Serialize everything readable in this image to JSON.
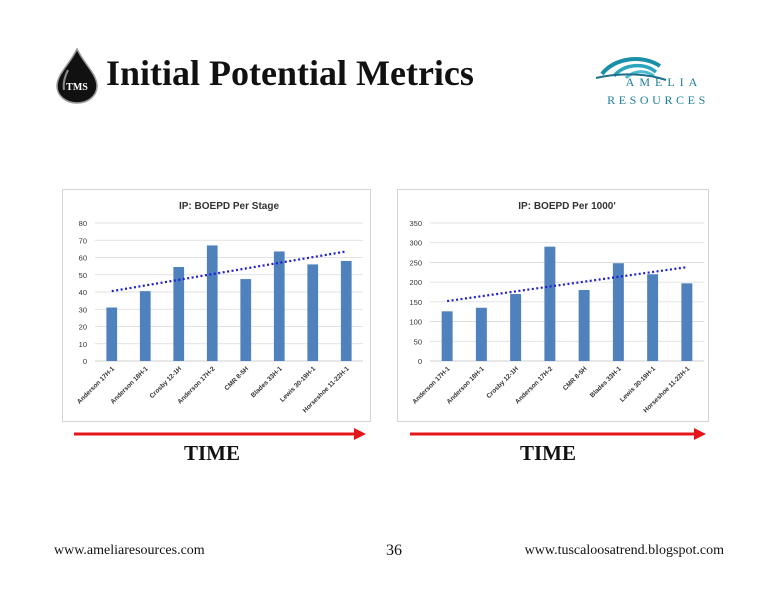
{
  "slide": {
    "title": "Initial Potential Metrics",
    "tms_logo_text": "TMS",
    "amelia_logo": {
      "line1": "AMELIA",
      "line2": "RESOURCES"
    },
    "time_label_left": "TIME",
    "time_label_right": "TIME",
    "footer_left": "www.ameliaresources.com",
    "page_number": "36",
    "footer_right": "www.tuscaloosatrend.blogspot.com",
    "colors": {
      "bar": "#4f81bd",
      "trend": "#1f1fd0",
      "arrow": "#e3161b",
      "grid": "#d9d9d9"
    }
  },
  "chart_data": [
    {
      "type": "bar",
      "title": "IP: BOEPD Per Stage",
      "categories": [
        "Anderson 17H-1",
        "Anderson 18H-1",
        "Crosby 12-1H",
        "Anderson 17H-2",
        "CMR 8-5H",
        "Blades 33H-1",
        "Lewis 30-19H-1",
        "Horseshoe 11-22H-1"
      ],
      "values": [
        31,
        40.5,
        54.5,
        67,
        47.5,
        63.5,
        56,
        58
      ],
      "ylim": [
        0,
        80
      ],
      "yticks": [
        "0",
        "10",
        "20",
        "30",
        "40",
        "50",
        "60",
        "70",
        "80"
      ],
      "trendline": {
        "start": 40.5,
        "end": 63.5,
        "style": "dotted"
      },
      "grid": true,
      "legend": "none"
    },
    {
      "type": "bar",
      "title": "IP: BOEPD Per 1000'",
      "categories": [
        "Anderson 17H-1",
        "Anderson 18H-1",
        "Crosby 12-1H",
        "Anderson 17H-2",
        "CMR 8-5H",
        "Blades 33H-1",
        "Lewis 30-19H-1",
        "Horseshoe 11-22H-1"
      ],
      "values": [
        126,
        135,
        170,
        290,
        180,
        248,
        220,
        197
      ],
      "ylim": [
        0,
        350
      ],
      "yticks": [
        "0",
        "50",
        "100",
        "150",
        "200",
        "250",
        "300",
        "350"
      ],
      "trendline": {
        "start": 152,
        "end": 238,
        "style": "dotted"
      },
      "grid": true,
      "legend": "none"
    }
  ]
}
